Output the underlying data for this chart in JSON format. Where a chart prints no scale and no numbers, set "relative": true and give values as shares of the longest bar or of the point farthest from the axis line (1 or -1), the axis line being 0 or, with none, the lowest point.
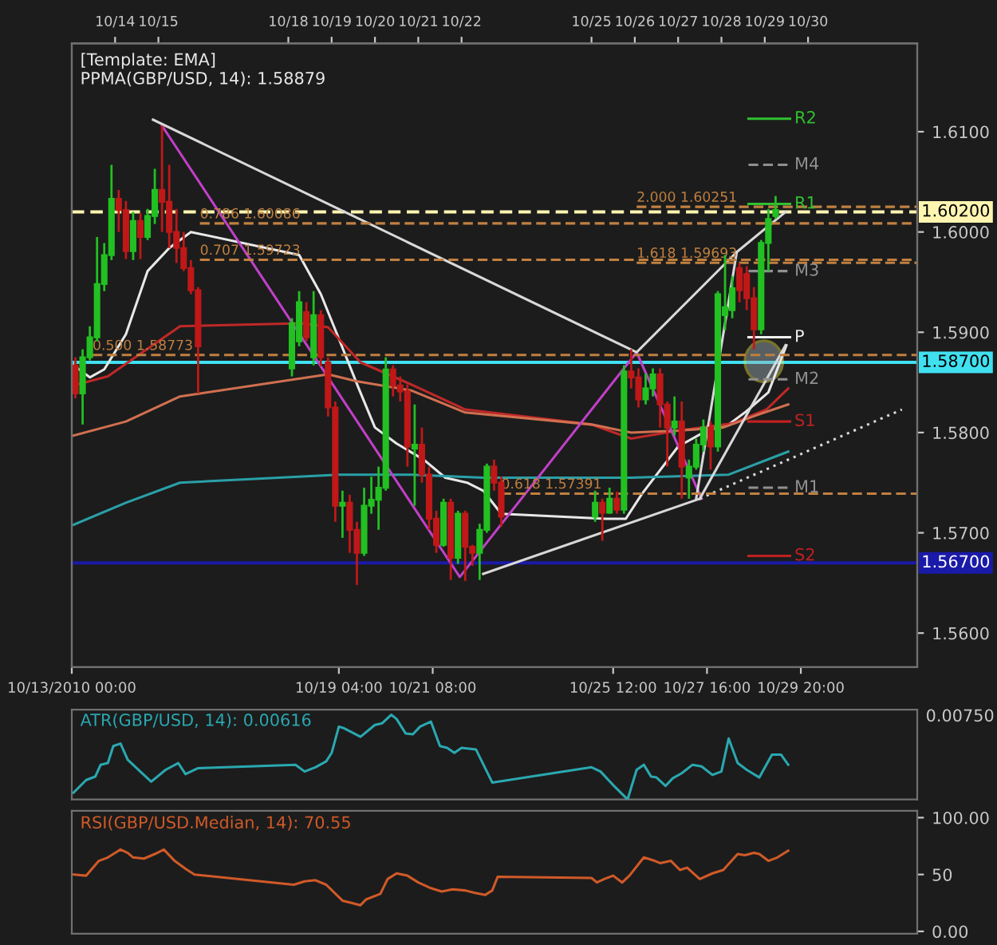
{
  "chart_data": [
    {
      "type": "candlestick",
      "annotations": [
        "[Template: EMA]",
        "PPMA(GBP/USD, 14): 1.58879"
      ],
      "x": [
        "2010-10-13T02:00",
        "2010-10-13T06:00",
        "2010-10-13T10:00",
        "2010-10-13T14:00",
        "2010-10-13T18:00",
        "2010-10-13T22:00",
        "2010-10-14T02:00",
        "2010-10-14T06:00",
        "2010-10-14T10:00",
        "2010-10-14T14:00",
        "2010-10-14T18:00",
        "2010-10-14T22:00",
        "2010-10-15T02:00",
        "2010-10-15T06:00",
        "2010-10-15T10:00",
        "2010-10-15T14:00",
        "2010-10-15T18:00",
        "2010-10-15T22:00",
        "2010-10-18T02:00",
        "2010-10-18T06:00",
        "2010-10-18T10:00",
        "2010-10-18T14:00",
        "2010-10-18T18:00",
        "2010-10-18T22:00",
        "2010-10-19T02:00",
        "2010-10-19T06:00",
        "2010-10-19T10:00",
        "2010-10-19T14:00",
        "2010-10-19T18:00",
        "2010-10-19T22:00",
        "2010-10-20T02:00",
        "2010-10-20T06:00",
        "2010-10-20T10:00",
        "2010-10-20T14:00",
        "2010-10-20T18:00",
        "2010-10-20T22:00",
        "2010-10-21T02:00",
        "2010-10-21T06:00",
        "2010-10-21T10:00",
        "2010-10-21T14:00",
        "2010-10-21T18:00",
        "2010-10-21T22:00",
        "2010-10-22T02:00",
        "2010-10-22T06:00",
        "2010-10-22T10:00",
        "2010-10-22T14:00",
        "2010-10-22T18:00",
        "2010-10-22T22:00",
        "2010-10-25T02:00",
        "2010-10-25T06:00",
        "2010-10-25T10:00",
        "2010-10-25T14:00",
        "2010-10-25T18:00",
        "2010-10-25T22:00",
        "2010-10-26T02:00",
        "2010-10-26T06:00",
        "2010-10-26T10:00",
        "2010-10-26T14:00",
        "2010-10-26T18:00",
        "2010-10-26T22:00",
        "2010-10-27T02:00",
        "2010-10-27T06:00",
        "2010-10-27T10:00",
        "2010-10-27T14:00",
        "2010-10-27T18:00",
        "2010-10-27T22:00",
        "2010-10-28T02:00",
        "2010-10-28T06:00",
        "2010-10-28T10:00",
        "2010-10-28T14:00",
        "2010-10-28T18:00",
        "2010-10-28T22:00",
        "2010-10-29T02:00",
        "2010-10-29T06:00"
      ],
      "ohlc": [
        [
          1.5867,
          1.5875,
          1.5834,
          1.5839
        ],
        [
          1.5839,
          1.5883,
          1.5808,
          1.5875
        ],
        [
          1.5875,
          1.5906,
          1.5872,
          1.5895
        ],
        [
          1.5895,
          1.5995,
          1.5891,
          1.5948
        ],
        [
          1.5948,
          1.5989,
          1.5941,
          1.5977
        ],
        [
          1.5977,
          1.6067,
          1.5972,
          1.6033
        ],
        [
          1.6033,
          1.6042,
          1.6,
          1.6022
        ],
        [
          1.6022,
          1.6031,
          1.5973,
          1.5981
        ],
        [
          1.5981,
          1.602,
          1.5972,
          1.6011
        ],
        [
          1.6011,
          1.6019,
          1.5973,
          1.5995
        ],
        [
          1.5995,
          1.6023,
          1.5992,
          1.6016
        ],
        [
          1.6016,
          1.6063,
          1.6008,
          1.6042
        ],
        [
          1.6042,
          1.6106,
          1.6,
          1.603
        ],
        [
          1.603,
          1.6067,
          1.5984,
          1.6
        ],
        [
          1.6,
          1.6023,
          1.5969,
          1.5984
        ],
        [
          1.5984,
          1.6,
          1.5961,
          1.5964
        ],
        [
          1.5964,
          1.5972,
          1.5938,
          1.5942
        ],
        [
          1.5942,
          1.5945,
          1.5839,
          1.5886
        ],
        [
          1.5864,
          1.5914,
          1.5856,
          1.5909
        ],
        [
          1.5891,
          1.5941,
          1.5886,
          1.593
        ],
        [
          1.592,
          1.593,
          1.5891,
          1.5895
        ],
        [
          1.5875,
          1.5941,
          1.5867,
          1.5917
        ],
        [
          1.5917,
          1.5922,
          1.5866,
          1.5875
        ],
        [
          1.587,
          1.5875,
          1.5816,
          1.5825
        ],
        [
          1.5825,
          1.5831,
          1.5711,
          1.5727
        ],
        [
          1.5727,
          1.5742,
          1.5695,
          1.573
        ],
        [
          1.573,
          1.5738,
          1.568,
          1.5703
        ],
        [
          1.5703,
          1.5711,
          1.5648,
          1.568
        ],
        [
          1.568,
          1.5745,
          1.5677,
          1.5727
        ],
        [
          1.5727,
          1.5756,
          1.5719,
          1.5733
        ],
        [
          1.5733,
          1.5766,
          1.5703,
          1.5745
        ],
        [
          1.5745,
          1.5875,
          1.5742,
          1.5863
        ],
        [
          1.5863,
          1.5867,
          1.5836,
          1.5847
        ],
        [
          1.5847,
          1.5856,
          1.5831,
          1.5841
        ],
        [
          1.5841,
          1.5848,
          1.5766,
          1.5786
        ],
        [
          1.5784,
          1.5828,
          1.5727,
          1.5788
        ],
        [
          1.5788,
          1.5805,
          1.575,
          1.5758
        ],
        [
          1.5758,
          1.5766,
          1.5703,
          1.5714
        ],
        [
          1.5714,
          1.5722,
          1.568,
          1.5688
        ],
        [
          1.5688,
          1.5734,
          1.5686,
          1.573
        ],
        [
          1.573,
          1.5734,
          1.5653,
          1.5675
        ],
        [
          1.5675,
          1.5722,
          1.5669,
          1.5719
        ],
        [
          1.5719,
          1.5722,
          1.5652,
          1.5686
        ],
        [
          1.5686,
          1.5688,
          1.5667,
          1.568
        ],
        [
          1.568,
          1.5709,
          1.5653,
          1.5703
        ],
        [
          1.5703,
          1.5769,
          1.57,
          1.5766
        ],
        [
          1.5766,
          1.5773,
          1.5742,
          1.575
        ],
        [
          1.575,
          1.5756,
          1.5706,
          1.5716
        ],
        [
          1.5716,
          1.5742,
          1.5711,
          1.573
        ],
        [
          1.573,
          1.5734,
          1.5692,
          1.572
        ],
        [
          1.572,
          1.5745,
          1.5719,
          1.5734
        ],
        [
          1.5734,
          1.5741,
          1.5719,
          1.5723
        ],
        [
          1.5723,
          1.5867,
          1.5719,
          1.5861
        ],
        [
          1.5861,
          1.5883,
          1.5844,
          1.5855
        ],
        [
          1.5855,
          1.5864,
          1.5825,
          1.5833
        ],
        [
          1.5833,
          1.5859,
          1.5828,
          1.5844
        ],
        [
          1.5844,
          1.5864,
          1.5836,
          1.5858
        ],
        [
          1.5858,
          1.5864,
          1.5805,
          1.5828
        ],
        [
          1.5828,
          1.5831,
          1.5766,
          1.5805
        ],
        [
          1.5805,
          1.5836,
          1.5797,
          1.5811
        ],
        [
          1.5811,
          1.5831,
          1.5734,
          1.5766
        ],
        [
          1.5755,
          1.5773,
          1.5734,
          1.5766
        ],
        [
          1.5766,
          1.5794,
          1.5763,
          1.5788
        ],
        [
          1.5788,
          1.5813,
          1.5781,
          1.5805
        ],
        [
          1.5805,
          1.5811,
          1.5763,
          1.5786
        ],
        [
          1.5786,
          1.5941,
          1.5781,
          1.5938
        ],
        [
          1.5917,
          1.5977,
          1.5902,
          1.5925
        ],
        [
          1.5922,
          1.5956,
          1.5914,
          1.5944
        ],
        [
          1.5964,
          1.5969,
          1.593,
          1.5942
        ],
        [
          1.5958,
          1.5966,
          1.5922,
          1.5934
        ],
        [
          1.5934,
          1.5945,
          1.5883,
          1.5903
        ],
        [
          1.5903,
          1.5992,
          1.5898,
          1.5989
        ],
        [
          1.5989,
          1.6023,
          1.5961,
          1.6013
        ],
        [
          1.6016,
          1.6036,
          1.6013,
          1.6022
        ]
      ],
      "series": [
        {
          "type": "line",
          "color": "#e8e8e8",
          "x": [
            "2010-10-13T01:00",
            "2010-10-13T10:00",
            "2010-10-13T18:00",
            "2010-10-14T06:00",
            "2010-10-14T18:00",
            "2010-10-15T06:00",
            "2010-10-15T18:00",
            "2010-10-18T06:00",
            "2010-10-18T18:00",
            "2010-10-19T03:00",
            "2010-10-19T15:00",
            "2010-10-20T00:00",
            "2010-10-20T12:00",
            "2010-10-21T03:00",
            "2010-10-21T15:00",
            "2010-10-22T03:00",
            "2010-10-22T12:00",
            "2010-10-22T22:00",
            "2010-10-25T08:00",
            "2010-10-25T19:00",
            "2010-10-26T04:00",
            "2010-10-27T00:00",
            "2010-10-27T16:00",
            "2010-10-28T04:00",
            "2010-10-28T13:00",
            "2010-10-29T02:00",
            "2010-10-29T12:00"
          ],
          "values": [
            1.5867,
            1.5855,
            1.5863,
            1.5898,
            1.5961,
            1.5984,
            1.6,
            1.5977,
            1.5938,
            1.5898,
            1.5844,
            1.5805,
            1.5789,
            1.5773,
            1.5755,
            1.575,
            1.5742,
            1.5719,
            1.5714,
            1.5714,
            1.5739,
            1.5786,
            1.5802,
            1.5808,
            1.582,
            1.584,
            1.5887
          ]
        },
        {
          "type": "line",
          "color": "#c02828",
          "x": [
            "2010-10-13T01:00",
            "2010-10-13T20:00",
            "2010-10-15T12:00",
            "2010-10-18T08:00",
            "2010-10-18T22:00",
            "2010-10-19T16:00",
            "2010-10-20T20:00",
            "2010-10-22T02:00",
            "2010-10-25T00:00",
            "2010-10-25T22:00",
            "2010-10-27T00:00",
            "2010-10-28T06:00",
            "2010-10-29T01:00",
            "2010-10-29T13:00"
          ],
          "values": [
            1.5847,
            1.5856,
            1.5906,
            1.5909,
            1.5905,
            1.587,
            1.5848,
            1.5823,
            1.5808,
            1.5794,
            1.5802,
            1.5809,
            1.5823,
            1.5844
          ]
        },
        {
          "type": "line",
          "color": "#d07050",
          "x": [
            "2010-10-13T01:00",
            "2010-10-14T06:00",
            "2010-10-15T12:00",
            "2010-10-18T22:00",
            "2010-10-19T14:00",
            "2010-10-20T20:00",
            "2010-10-22T02:00",
            "2010-10-25T00:00",
            "2010-10-25T22:00",
            "2010-10-27T00:00",
            "2010-10-28T01:00",
            "2010-10-28T19:00",
            "2010-10-29T13:00"
          ],
          "values": [
            1.5797,
            1.5811,
            1.5836,
            1.5858,
            1.5851,
            1.5842,
            1.582,
            1.5808,
            1.58,
            1.5802,
            1.5805,
            1.5817,
            1.5828
          ]
        },
        {
          "type": "line",
          "color": "#2aa0a8",
          "x": [
            "2010-10-13T01:00",
            "2010-10-14T06:00",
            "2010-10-15T12:00",
            "2010-10-19T04:00",
            "2010-10-20T20:00",
            "2010-10-22T12:00",
            "2010-10-25T22:00",
            "2010-10-28T04:00",
            "2010-10-29T13:00"
          ],
          "values": [
            1.5708,
            1.573,
            1.575,
            1.5758,
            1.5758,
            1.5755,
            1.5755,
            1.5758,
            1.5781
          ]
        },
        {
          "type": "line",
          "color": "#c040c8",
          "x": [
            "2010-10-15T02:00",
            "2010-10-21T23:00",
            "2010-10-26T01:00",
            "2010-10-27T13:00"
          ],
          "values": [
            1.6106,
            1.5656,
            1.588,
            1.5734
          ]
        },
        {
          "type": "line",
          "color": "#d8d8d8",
          "x": [
            "2010-10-14T21:00",
            "2010-10-26T01:00",
            "2010-10-28T08:30",
            "2010-10-29T11:30"
          ],
          "values": [
            1.6112,
            1.588,
            1.598,
            1.602
          ]
        },
        {
          "type": "line",
          "color": "#d8d8d8",
          "x": [
            "2010-10-22T12:00",
            "2010-10-27T12:00"
          ],
          "values": [
            1.5659,
            1.5734
          ]
        },
        {
          "type": "line",
          "color": "#d8d8d8",
          "line_style": "dotted",
          "x": [
            "2010-10-27T12:00",
            "2010-11-01T04:00"
          ],
          "values": [
            1.5734,
            1.5823
          ]
        },
        {
          "type": "line",
          "color": "#d8d8d8",
          "x": [
            "2010-10-27T10:00",
            "2010-10-28T08:30"
          ],
          "values": [
            1.5734,
            1.598
          ]
        },
        {
          "type": "line",
          "color": "#d8d8d8",
          "x": [
            "2010-10-27T12:00",
            "2010-10-29T11:30"
          ],
          "values": [
            1.5734,
            1.5887
          ]
        },
        {
          "type": "line",
          "name": "0.786 1.60086",
          "color": "#c08040",
          "line_style": "dashed",
          "x": [
            "2010-10-15T23:00",
            "2010-11-01T12:30"
          ],
          "values": [
            1.60086,
            1.60086
          ]
        },
        {
          "type": "line",
          "name": "0.707 1.59723",
          "color": "#c08040",
          "line_style": "dashed",
          "x": [
            "2010-10-15T23:00",
            "2010-11-01T12:30"
          ],
          "values": [
            1.59723,
            1.59723
          ]
        },
        {
          "type": "line",
          "name": "0.500 1.58773",
          "color": "#c08040",
          "line_style": "dashed",
          "x": [
            "2010-10-13T11:30",
            "2010-11-01T12:30"
          ],
          "values": [
            1.58773,
            1.58773
          ]
        },
        {
          "type": "line",
          "name": "0.618 1.57391",
          "color": "#c08040",
          "line_style": "dashed",
          "x": [
            "2010-10-22T22:00",
            "2010-11-01T12:30"
          ],
          "values": [
            1.57391,
            1.57391
          ]
        },
        {
          "type": "line",
          "name": "2.000 1.60251",
          "color": "#c08040",
          "line_style": "dashed",
          "x": [
            "2010-10-26T01:00",
            "2010-11-01T12:30"
          ],
          "values": [
            1.60251,
            1.60251
          ]
        },
        {
          "type": "line",
          "name": "1.618 1.59693",
          "color": "#c08040",
          "line_style": "dashed",
          "x": [
            "2010-10-26T01:00",
            "2010-11-01T12:30"
          ],
          "values": [
            1.59693,
            1.59693
          ]
        },
        {
          "type": "line",
          "name": "R2",
          "color": "#30c030",
          "x": [
            "2010-10-28T15:00",
            "2010-10-29T14:00"
          ],
          "values": [
            1.6113,
            1.6113
          ]
        },
        {
          "type": "line",
          "name": "M4",
          "color": "#909090",
          "line_style": "dashed",
          "x": [
            "2010-10-28T15:00",
            "2010-10-29T14:00"
          ],
          "values": [
            1.6067,
            1.6067
          ]
        },
        {
          "type": "line",
          "name": "R1",
          "color": "#30c030",
          "x": [
            "2010-10-28T15:00",
            "2010-10-29T14:00"
          ],
          "values": [
            1.6028,
            1.6028
          ]
        },
        {
          "type": "line",
          "name": "M3",
          "color": "#909090",
          "line_style": "dashed",
          "x": [
            "2010-10-28T15:00",
            "2010-10-29T14:00"
          ],
          "values": [
            1.5961,
            1.5961
          ]
        },
        {
          "type": "line",
          "name": "P",
          "color": "#f0f0f0",
          "x": [
            "2010-10-28T15:00",
            "2010-10-29T14:00"
          ],
          "values": [
            1.5895,
            1.5895
          ]
        },
        {
          "type": "line",
          "name": "M2",
          "color": "#909090",
          "line_style": "dashed",
          "x": [
            "2010-10-28T15:00",
            "2010-10-29T14:00"
          ],
          "values": [
            1.5853,
            1.5853
          ]
        },
        {
          "type": "line",
          "name": "S1",
          "color": "#c02020",
          "x": [
            "2010-10-28T15:00",
            "2010-10-29T14:00"
          ],
          "values": [
            1.5811,
            1.5811
          ]
        },
        {
          "type": "line",
          "name": "M1",
          "color": "#909090",
          "line_style": "dashed",
          "x": [
            "2010-10-28T15:00",
            "2010-10-29T14:00"
          ],
          "values": [
            1.5745,
            1.5745
          ]
        },
        {
          "type": "line",
          "name": "S2",
          "color": "#c02020",
          "x": [
            "2010-10-28T15:00",
            "2010-10-29T14:00"
          ],
          "values": [
            1.5677,
            1.5677
          ]
        }
      ],
      "ref_lines": [
        {
          "axis": "y",
          "value": 1.602,
          "label": "1.60200",
          "color": "#fff5b0",
          "line_style": "dashed"
        },
        {
          "axis": "y",
          "value": 1.587,
          "label": "1.58700",
          "color": "#40e0f0",
          "line_style": "solid"
        },
        {
          "axis": "y",
          "value": 1.567,
          "label": "1.56700",
          "color": "#1a1aa8",
          "line_style": "solid"
        }
      ],
      "xlim": [
        "2010-10-13T00:00",
        "2010-11-01T12:30"
      ],
      "xticks": [
        {
          "value": "2010-10-13T00:00",
          "label": "10/13/2010 00:00"
        },
        {
          "value": "2010-10-19T04:00",
          "label": "10/19 04:00"
        },
        {
          "value": "2010-10-21T08:00",
          "label": "10/21 08:00"
        },
        {
          "value": "2010-10-25T12:00",
          "label": "10/25 12:00"
        },
        {
          "value": "2010-10-27T16:00",
          "label": "10/27 16:00"
        },
        {
          "value": "2010-10-29T20:00",
          "label": "10/29 20:00"
        }
      ],
      "x2lim": [
        "2010-10-13T00:00",
        "2010-11-01T12:30"
      ],
      "x2ticks": [
        {
          "value": "2010-10-14",
          "label": "10/14"
        },
        {
          "value": "2010-10-15",
          "label": "10/15"
        },
        {
          "value": "2010-10-18",
          "label": "10/18"
        },
        {
          "value": "2010-10-19",
          "label": "10/19"
        },
        {
          "value": "2010-10-20",
          "label": "10/20"
        },
        {
          "value": "2010-10-21",
          "label": "10/21"
        },
        {
          "value": "2010-10-22",
          "label": "10/22"
        },
        {
          "value": "2010-10-25",
          "label": "10/25"
        },
        {
          "value": "2010-10-26",
          "label": "10/26"
        },
        {
          "value": "2010-10-27",
          "label": "10/27"
        },
        {
          "value": "2010-10-28",
          "label": "10/28"
        },
        {
          "value": "2010-10-29",
          "label": "10/29"
        },
        {
          "value": "2010-10-30",
          "label": "10/30"
        }
      ],
      "ylim": [
        1.5566,
        1.6188
      ],
      "yticks": [
        {
          "value": 1.56,
          "label": "1.5600"
        },
        {
          "value": 1.57,
          "label": "1.5700"
        },
        {
          "value": 1.58,
          "label": "1.5800"
        },
        {
          "value": 1.59,
          "label": "1.5900"
        },
        {
          "value": 1.6,
          "label": "1.6000"
        },
        {
          "value": 1.61,
          "label": "1.6100"
        }
      ]
    },
    {
      "type": "line",
      "title": "ATR(GBP/USD, 14): 0.00616",
      "relative": true,
      "tick_labels": false,
      "annotations": [
        "0.00750"
      ],
      "xlim": [
        "2010-10-13T00:00",
        "2010-11-01T12:30"
      ],
      "series": [
        {
          "color": "#2aa8b0",
          "x": [
            "2010-10-13T01:00",
            "2010-10-13T08:00",
            "2010-10-13T13:00",
            "2010-10-13T16:00",
            "2010-10-13T20:00",
            "2010-10-13T23:00",
            "2010-10-14T03:00",
            "2010-10-14T07:00",
            "2010-10-14T13:00",
            "2010-10-14T20:00",
            "2010-10-15T04:00",
            "2010-10-15T11:00",
            "2010-10-15T15:00",
            "2010-10-15T22:00",
            "2010-10-18T04:00",
            "2010-10-18T09:00",
            "2010-10-18T15:00",
            "2010-10-18T21:00",
            "2010-10-19T00:00",
            "2010-10-19T04:00",
            "2010-10-19T07:00",
            "2010-10-19T16:00",
            "2010-10-20T00:00",
            "2010-10-20T04:00",
            "2010-10-20T09:00",
            "2010-10-20T12:00",
            "2010-10-20T17:00",
            "2010-10-20T21:00",
            "2010-10-21T01:00",
            "2010-10-21T07:00",
            "2010-10-21T12:00",
            "2010-10-21T16:00",
            "2010-10-21T20:00",
            "2010-10-22T00:00",
            "2010-10-22T08:00",
            "2010-10-22T17:00",
            "2010-10-25T00:00",
            "2010-10-25T05:00",
            "2010-10-25T12:00",
            "2010-10-25T20:00",
            "2010-10-26T01:00",
            "2010-10-26T05:00",
            "2010-10-26T09:00",
            "2010-10-26T12:00",
            "2010-10-26T17:00",
            "2010-10-26T21:00",
            "2010-10-27T02:00",
            "2010-10-27T08:00",
            "2010-10-27T13:00",
            "2010-10-27T19:00",
            "2010-10-28T00:00",
            "2010-10-28T04:00",
            "2010-10-28T09:00",
            "2010-10-28T14:00",
            "2010-10-28T21:00",
            "2010-10-29T04:00",
            "2010-10-29T09:00",
            "2010-10-29T13:00"
          ],
          "values": [
            0.08,
            0.23,
            0.27,
            0.41,
            0.43,
            0.63,
            0.66,
            0.47,
            0.35,
            0.21,
            0.35,
            0.43,
            0.3,
            0.37,
            0.41,
            0.33,
            0.38,
            0.45,
            0.55,
            0.86,
            0.84,
            0.74,
            0.88,
            0.9,
            1.0,
            0.95,
            0.78,
            0.77,
            0.86,
            0.92,
            0.63,
            0.61,
            0.55,
            0.61,
            0.59,
            0.2,
            0.38,
            0.33,
            0.17,
            0,
            0.35,
            0.41,
            0.27,
            0.26,
            0.16,
            0.25,
            0.31,
            0.41,
            0.39,
            0.29,
            0.33,
            0.72,
            0.43,
            0.35,
            0.26,
            0.53,
            0.53,
            0.41
          ]
        }
      ]
    },
    {
      "type": "line",
      "title": "RSI(GBP/USD.Median, 14): 70.55",
      "tick_labels": "y",
      "xlim": [
        "2010-10-13T00:00",
        "2010-11-01T12:30"
      ],
      "ylim": [
        -2,
        106
      ],
      "yticks": [
        {
          "value": 0,
          "label": "0.00"
        },
        {
          "value": 50,
          "label": "50"
        },
        {
          "value": 100,
          "label": "100.00"
        }
      ],
      "series": [
        {
          "color": "#d05a28",
          "x": [
            "2010-10-13T01:00",
            "2010-10-13T08:00",
            "2010-10-13T15:00",
            "2010-10-13T20:00",
            "2010-10-14T01:00",
            "2010-10-14T03:00",
            "2010-10-14T07:00",
            "2010-10-14T10:00",
            "2010-10-14T16:00",
            "2010-10-14T22:00",
            "2010-10-15T03:00",
            "2010-10-15T09:00",
            "2010-10-15T15:00",
            "2010-10-15T20:00",
            "2010-10-18T03:00",
            "2010-10-18T09:00",
            "2010-10-18T15:00",
            "2010-10-18T21:00",
            "2010-10-19T06:00",
            "2010-10-19T11:00",
            "2010-10-19T16:00",
            "2010-10-19T19:00",
            "2010-10-20T03:00",
            "2010-10-20T07:00",
            "2010-10-20T12:00",
            "2010-10-20T18:00",
            "2010-10-21T00:00",
            "2010-10-21T07:00",
            "2010-10-21T13:00",
            "2010-10-21T19:00",
            "2010-10-22T02:00",
            "2010-10-22T07:00",
            "2010-10-22T13:00",
            "2010-10-22T17:00",
            "2010-10-22T20:00",
            "2010-10-25T00:00",
            "2010-10-25T03:00",
            "2010-10-25T07:00",
            "2010-10-25T12:00",
            "2010-10-25T17:00",
            "2010-10-25T21:00",
            "2010-10-26T05:00",
            "2010-10-26T11:00",
            "2010-10-26T14:00",
            "2010-10-26T20:00",
            "2010-10-27T01:00",
            "2010-10-27T05:00",
            "2010-10-27T12:00",
            "2010-10-27T19:00",
            "2010-10-28T01:00",
            "2010-10-28T09:00",
            "2010-10-28T13:00",
            "2010-10-28T18:00",
            "2010-10-28T21:00",
            "2010-10-29T02:00",
            "2010-10-29T07:00",
            "2010-10-29T13:00"
          ],
          "values": [
            50,
            49,
            62,
            65,
            70,
            72,
            69,
            65,
            64,
            68,
            72,
            62,
            55,
            50,
            41,
            44,
            45,
            41,
            27,
            25,
            23,
            28,
            33,
            46,
            51,
            49,
            43,
            38,
            35,
            37,
            36,
            34,
            32,
            36,
            48,
            47,
            43,
            46,
            49,
            43,
            49,
            65,
            62,
            60,
            62,
            54,
            56,
            46,
            51,
            54,
            68,
            67,
            69,
            68,
            62,
            65,
            71
          ]
        }
      ]
    }
  ]
}
